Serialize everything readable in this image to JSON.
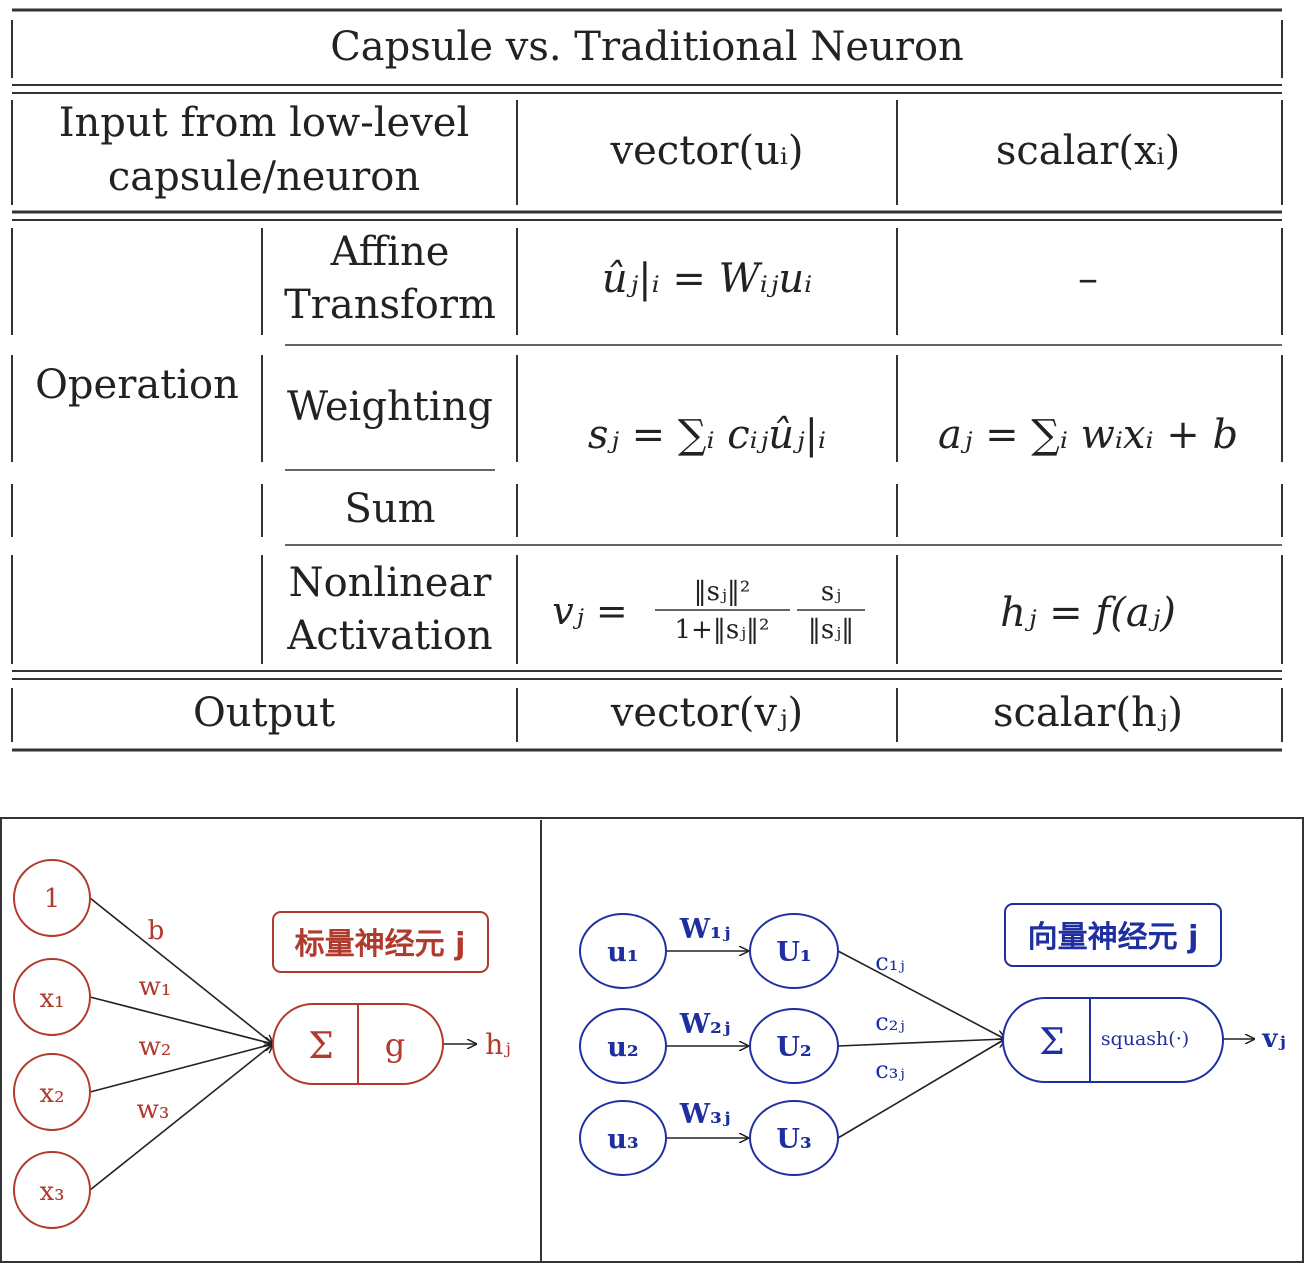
{
  "table": {
    "title": "Capsule vs. Traditional Neuron",
    "input_row": {
      "label_line1": "Input from low-level",
      "label_line2": "capsule/neuron",
      "capsule": "vector(uᵢ)",
      "neuron": "scalar(xᵢ)"
    },
    "operation_label": "Operation",
    "affine": {
      "label_line1": "Affine",
      "label_line2": "Transform",
      "capsule": "ûⱼ|ᵢ = Wᵢⱼuᵢ",
      "neuron": "–"
    },
    "weighting": {
      "label": "Weighting"
    },
    "sum": {
      "label": "Sum"
    },
    "weighted_sum": {
      "capsule": "sⱼ = ∑ᵢ cᵢⱼûⱼ|ᵢ",
      "neuron": "aⱼ = ∑ᵢ wᵢxᵢ + b"
    },
    "nonlinear": {
      "label_line1": "Nonlinear",
      "label_line2": "Activation",
      "capsule_lhs": "vⱼ =",
      "capsule_frac1_num": "‖sⱼ‖²",
      "capsule_frac1_den": "1+‖sⱼ‖²",
      "capsule_frac2_num": "sⱼ",
      "capsule_frac2_den": "‖sⱼ‖",
      "neuron": "hⱼ = f(aⱼ)"
    },
    "output_row": {
      "label": "Output",
      "capsule": "vector(vⱼ)",
      "neuron": "scalar(hⱼ)"
    }
  },
  "scalar_diagram": {
    "title": "标量神经元 j",
    "inputs": [
      "1",
      "x₁",
      "x₂",
      "x₃"
    ],
    "weights": [
      "b",
      "w₁",
      "w₂",
      "w₃"
    ],
    "sum_symbol": "Σ",
    "activation": "g",
    "output": "hⱼ",
    "color": "#b03a2e"
  },
  "vector_diagram": {
    "title": "向量神经元 j",
    "inputs": [
      "u₁",
      "u₂",
      "u₃"
    ],
    "transforms": [
      "W₁ⱼ",
      "W₂ⱼ",
      "W₃ⱼ"
    ],
    "predictions": [
      "U₁",
      "U₂",
      "U₃"
    ],
    "couplings": [
      "c₁ⱼ",
      "c₂ⱼ",
      "c₃ⱼ"
    ],
    "sum_symbol": "Σ",
    "activation": "squash(·)",
    "output": "vⱼ",
    "color": "#1f2fa0"
  }
}
